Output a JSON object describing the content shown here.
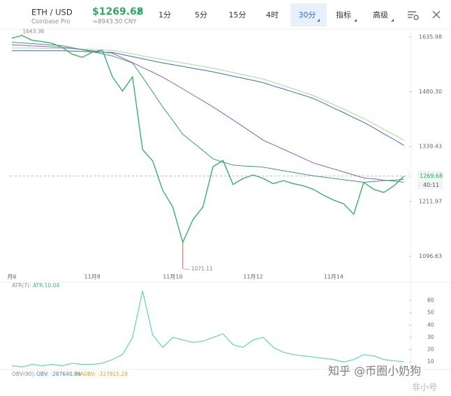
{
  "toolbar": {
    "pair": "ETH / USD",
    "exchange": "Coinbase Pro",
    "price": "$1269.68",
    "cny": "≈8943.50 CNY",
    "intervals": [
      "1分",
      "5分",
      "15分",
      "4时",
      "30分"
    ],
    "menus": [
      "指标",
      "高级"
    ]
  },
  "chart_data": [
    {
      "type": "line",
      "log_scale": true,
      "categories": [
        "月6",
        null,
        null,
        null,
        null,
        null,
        null,
        null,
        "11月8",
        null,
        null,
        null,
        null,
        null,
        null,
        null,
        "11月10",
        null,
        null,
        null,
        null,
        null,
        null,
        null,
        "11月12",
        null,
        null,
        null,
        null,
        null,
        null,
        null,
        "11月14",
        null,
        null,
        null,
        null,
        null,
        null,
        null
      ],
      "series": [
        {
          "color": "#a9d99a",
          "values": [
            1603,
            1603,
            1603,
            1602,
            1602,
            1602,
            1601,
            1600,
            1599,
            1597,
            1596,
            1591,
            1586,
            1580,
            1575,
            1570,
            1565,
            1560,
            1555,
            1550,
            1545,
            1539,
            1533,
            1527,
            1521,
            1515,
            1506,
            1497,
            1488,
            1479,
            1470,
            1458,
            1446,
            1434,
            1422,
            1410,
            1396,
            1382,
            1369,
            1355
          ]
        },
        {
          "color": "#3f6fa8",
          "values": [
            1595,
            1595,
            1595,
            1595,
            1595,
            1595,
            1594,
            1593,
            1592,
            1591,
            1590,
            1584,
            1578,
            1572,
            1566,
            1560,
            1555,
            1550,
            1545,
            1540,
            1535,
            1529,
            1523,
            1517,
            1511,
            1505,
            1496,
            1488,
            1479,
            1471,
            1462,
            1450,
            1437,
            1425,
            1412,
            1400,
            1386,
            1371,
            1357,
            1342
          ]
        },
        {
          "color": "#8a5fb5",
          "values": [
            1612,
            1611,
            1609,
            1608,
            1606,
            1605,
            1602,
            1598,
            1595,
            1591,
            1588,
            1574,
            1561,
            1547,
            1534,
            1520,
            1504,
            1488,
            1472,
            1456,
            1440,
            1423,
            1406,
            1389,
            1372,
            1355,
            1344,
            1333,
            1322,
            1311,
            1300,
            1293,
            1286,
            1279,
            1272,
            1265,
            1263,
            1260,
            1258,
            1255
          ]
        },
        {
          "color": "#3b9b7a",
          "values": [
            1620,
            1618,
            1616,
            1614,
            1612,
            1610,
            1604,
            1598,
            1592,
            1586,
            1580,
            1570,
            1560,
            1520,
            1480,
            1440,
            1405,
            1370,
            1350,
            1330,
            1310,
            1302,
            1295,
            1293,
            1292,
            1290,
            1286,
            1282,
            1278,
            1274,
            1270,
            1267,
            1264,
            1261,
            1258,
            1255,
            1257,
            1259,
            1260,
            1262
          ]
        },
        {
          "color": "#2faa62",
          "values": [
            1632,
            1640,
            1626,
            1622,
            1617,
            1605,
            1585,
            1576,
            1591,
            1597,
            1521,
            1482,
            1521,
            1332,
            1305,
            1237,
            1200,
            1125,
            1172,
            1200,
            1291,
            1306,
            1250,
            1264,
            1272,
            1264,
            1252,
            1259,
            1252,
            1247,
            1239,
            1226,
            1215,
            1207,
            1184,
            1255,
            1239,
            1232,
            1247,
            1269
          ]
        }
      ],
      "ylim": [
        1070,
        1665
      ],
      "yticks": [
        1635.98,
        {
          "value": 1480.3,
          "label": "1480.30"
        },
        1339.43,
        1211.97,
        1096.63
      ],
      "high": 1643.36,
      "low": 1071.11,
      "last": 1269.68,
      "countdown": "40:11"
    },
    {
      "type": "line",
      "indicator": "ATR(7):",
      "readout": "ATR:10.04",
      "series": [
        {
          "color": "#6fd6b8",
          "values": [
            7,
            6,
            8,
            7,
            8,
            7,
            9,
            8,
            8,
            9,
            12,
            16,
            30,
            68,
            32,
            22,
            30,
            28,
            26,
            27,
            30,
            33,
            24,
            22,
            28,
            30,
            22,
            18,
            16,
            15,
            14,
            13,
            12,
            10,
            12,
            16,
            15,
            12,
            11,
            10.04
          ]
        }
      ],
      "ylim": [
        5,
        72
      ],
      "yticks": [
        10,
        20,
        30,
        40,
        50,
        60
      ]
    }
  ],
  "obv_legend": {
    "name": "OBV(90):",
    "obv": "OBV: -287640.86",
    "maobv": "MAOBV: -327815.29"
  },
  "watermark": {
    "text": "知乎 @币圈小奶狗",
    "logo": "非小号"
  }
}
